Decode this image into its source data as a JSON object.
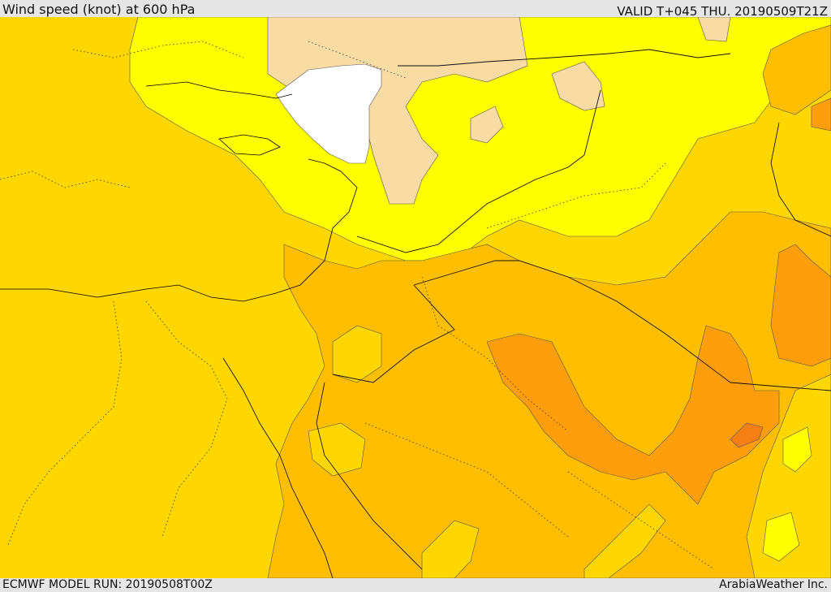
{
  "header": {
    "title": "Wind speed (knot) at 600 hPa",
    "valid": "VALID T+045 THU. 20190509T21Z"
  },
  "footer": {
    "model_run": "ECMWF MODEL RUN: 20190508T00Z",
    "credit": "ArabiaWeather Inc."
  },
  "colors": {
    "background": "#ffd700",
    "calm_white": "#ffffff",
    "light_tan": "#f9dca4",
    "bright_yellow": "#ffff00",
    "amber": "#ffbf00",
    "orange": "#ff9e0d",
    "dark_orange": "#f57f14"
  }
}
